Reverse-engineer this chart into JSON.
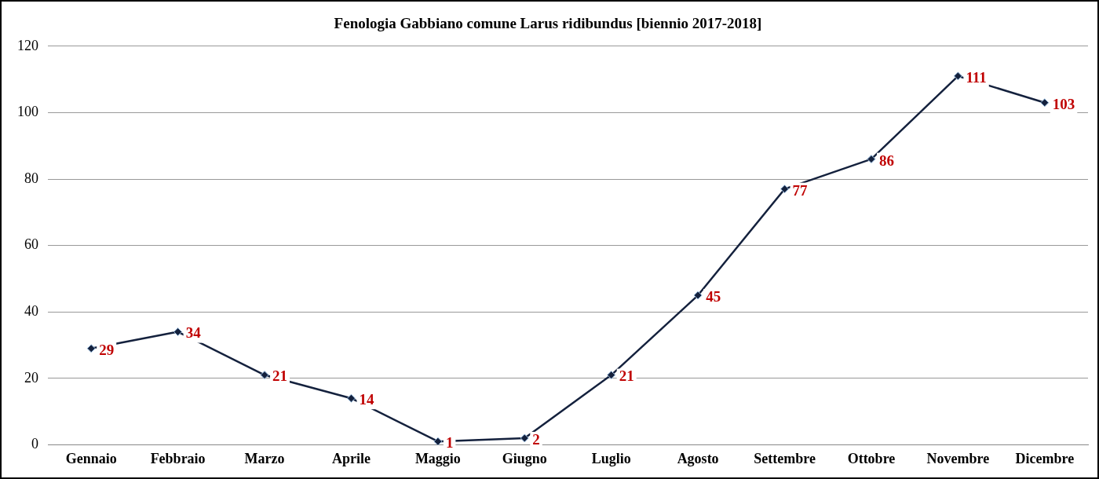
{
  "chart_data": {
    "type": "line",
    "title": "Fenologia Gabbiano comune Larus ridibundus [biennio 2017-2018]",
    "categories": [
      "Gennaio",
      "Febbraio",
      "Marzo",
      "Aprile",
      "Maggio",
      "Giugno",
      "Luglio",
      "Agosto",
      "Settembre",
      "Ottobre",
      "Novembre",
      "Dicembre"
    ],
    "series": [
      {
        "color": "#14213d",
        "values": [
          29,
          34,
          21,
          14,
          1,
          2,
          21,
          45,
          77,
          86,
          111,
          103
        ]
      }
    ],
    "ylim": [
      0,
      120
    ],
    "yticks": [
      0,
      20,
      40,
      60,
      80,
      100,
      120
    ],
    "grid": "y",
    "legend": false,
    "marker": "diamond",
    "line_style": "solid",
    "data_labels": true
  }
}
